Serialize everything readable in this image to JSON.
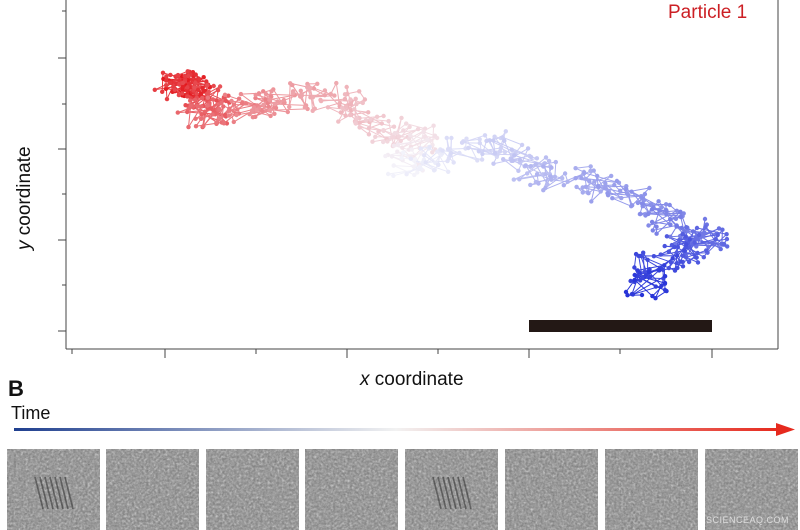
{
  "figure": {
    "panel_b_label": "B",
    "time_label": "Time",
    "watermark": "SCIENCEAQ.COM"
  },
  "chart_data": {
    "type": "scatter",
    "title": "",
    "xlabel_prefix": "x",
    "xlabel_rest": " coordinate",
    "ylabel_prefix": "y",
    "ylabel_rest": " coordinate",
    "legend": "Particle 1",
    "grid": false,
    "legend_placement": "top-right",
    "scale_bar": true,
    "colors": {
      "start": "#e3171c",
      "middle": "#f4f4fb",
      "end": "#2733d8",
      "scale_bar": "#231815",
      "time_arrow_start": "#1f3f8f",
      "time_arrow_end": "#e62a1e"
    },
    "trajectory_waypoints": [
      [
        0.32,
        0.0
      ],
      [
        0.6,
        0.12
      ],
      [
        0.3,
        0.1
      ],
      [
        0.85,
        -0.2
      ],
      [
        0.6,
        -0.55
      ],
      [
        1.05,
        -0.4
      ],
      [
        1.45,
        -0.25
      ],
      [
        1.95,
        -0.08
      ],
      [
        2.45,
        -0.2
      ],
      [
        2.8,
        -0.78
      ],
      [
        3.35,
        -1.0
      ],
      [
        3.1,
        -1.52
      ],
      [
        3.75,
        -1.28
      ],
      [
        4.4,
        -1.0
      ],
      [
        4.75,
        -1.58
      ],
      [
        5.25,
        -1.78
      ],
      [
        5.85,
        -2.02
      ],
      [
        6.4,
        -2.45
      ],
      [
        6.7,
        -2.85
      ],
      [
        7.0,
        -3.0
      ],
      [
        6.6,
        -3.2
      ],
      [
        6.3,
        -3.55
      ],
      [
        6.15,
        -4.1
      ]
    ],
    "frames_count": 8
  }
}
